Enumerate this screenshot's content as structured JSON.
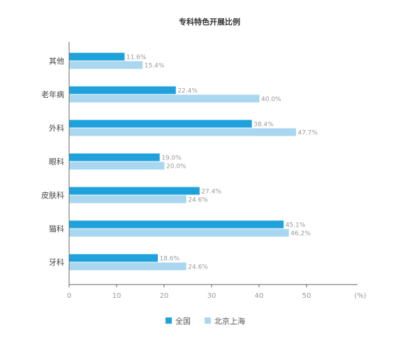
{
  "chart_data": {
    "type": "bar",
    "orientation": "horizontal",
    "title": "专科特色开展比例",
    "categories": [
      "其他",
      "老年病",
      "外科",
      "眼科",
      "皮肤科",
      "猫科",
      "牙科"
    ],
    "series": [
      {
        "name": "全国",
        "color": "#1fa2dc",
        "values": [
          11.6,
          22.4,
          38.4,
          19.0,
          27.4,
          45.1,
          18.6
        ],
        "labels": [
          "11.6%",
          "22.4%",
          "38.4%",
          "19.0%",
          "27.4%",
          "45.1%",
          "18.6%"
        ]
      },
      {
        "name": "北京上海",
        "color": "#a9d7ef",
        "values": [
          15.4,
          40.0,
          47.7,
          20.0,
          24.6,
          46.2,
          24.6
        ],
        "labels": [
          "15.4%",
          "40.0%",
          "47.7%",
          "20.0%",
          "24.6%",
          "46.2%",
          "24.6%"
        ]
      }
    ],
    "xticks": [
      "0",
      "10",
      "20",
      "30",
      "40",
      "50"
    ],
    "xunit": "(%)",
    "xlim": [
      0,
      60
    ],
    "grid": false,
    "legend_position": "bottom"
  }
}
